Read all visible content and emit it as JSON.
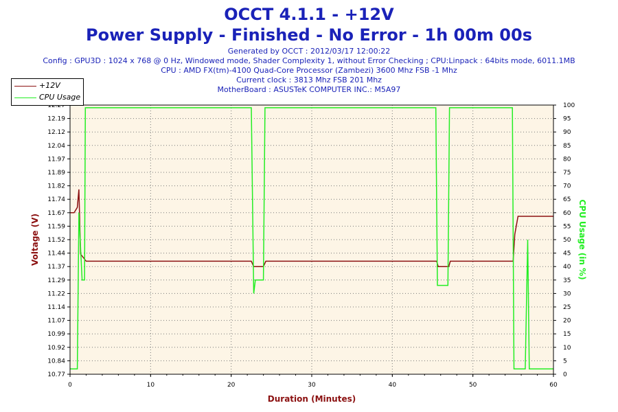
{
  "title_line1": "OCCT 4.1.1 - +12V",
  "title_line2": "Power Supply - Finished - No Error - 1h 00m 00s",
  "info_lines": [
    "Generated by OCCT : 2012/03/17 12:00:22",
    "Config : GPU3D : 1024 x 768 @ 0 Hz, Windowed mode, Shader Complexity 1, without Error Checking ; CPU:Linpack : 64bits mode, 6011.1MB",
    "CPU : AMD FX(tm)-4100 Quad-Core Processor (Zambezi) 3600 Mhz FSB -1 Mhz",
    "Current clock : 3813 Mhz FSB 201 Mhz",
    "MotherBoard : ASUSTeK COMPUTER INC.: M5A97"
  ],
  "colors": {
    "voltage": "#8b1010",
    "cpu": "#22ee22",
    "plot_bg": "#fdf5e6",
    "title": "#1a22b8"
  },
  "chart_data": {
    "type": "line",
    "title": "OCCT 4.1.1 - +12V",
    "subtitle": "Power Supply - Finished - No Error - 1h 00m 00s",
    "xlabel": "Duration (Minutes)",
    "ylabel": "Voltage (V)",
    "y2label": "CPU Usage (in %)",
    "xlim": [
      0,
      60
    ],
    "ylim": [
      10.77,
      12.27
    ],
    "y2lim": [
      0,
      100
    ],
    "x_ticks": [
      "0",
      "10",
      "20",
      "30",
      "40",
      "50",
      "60"
    ],
    "y_ticks": [
      "10.77",
      "10.84",
      "10.92",
      "10.99",
      "11.07",
      "11.14",
      "11.22",
      "11.29",
      "11.37",
      "11.44",
      "11.52",
      "11.59",
      "11.67",
      "11.74",
      "11.82",
      "11.89",
      "11.97",
      "12.04",
      "12.12",
      "12.19",
      "12.27"
    ],
    "y2_ticks": [
      "0",
      "5",
      "10",
      "15",
      "20",
      "25",
      "30",
      "35",
      "40",
      "45",
      "50",
      "55",
      "60",
      "65",
      "70",
      "75",
      "80",
      "85",
      "90",
      "95",
      "100"
    ],
    "grid": true,
    "legend": "top-left",
    "series": [
      {
        "name": "+12V",
        "axis": "left",
        "points": [
          [
            0,
            11.67
          ],
          [
            0.5,
            11.67
          ],
          [
            0.9,
            11.7
          ],
          [
            1.1,
            11.8
          ],
          [
            1.3,
            11.44
          ],
          [
            2,
            11.4
          ],
          [
            5,
            11.4
          ],
          [
            10,
            11.4
          ],
          [
            15,
            11.4
          ],
          [
            20,
            11.4
          ],
          [
            22.5,
            11.4
          ],
          [
            22.8,
            11.37
          ],
          [
            24,
            11.37
          ],
          [
            24.3,
            11.4
          ],
          [
            30,
            11.4
          ],
          [
            35,
            11.4
          ],
          [
            40,
            11.4
          ],
          [
            45.5,
            11.4
          ],
          [
            45.7,
            11.37
          ],
          [
            47,
            11.37
          ],
          [
            47.2,
            11.4
          ],
          [
            50,
            11.4
          ],
          [
            55,
            11.4
          ],
          [
            55.2,
            11.55
          ],
          [
            55.6,
            11.65
          ],
          [
            56,
            11.65
          ],
          [
            60,
            11.65
          ]
        ]
      },
      {
        "name": "CPU Usage",
        "axis": "right",
        "points": [
          [
            0,
            2
          ],
          [
            0.9,
            2
          ],
          [
            1.1,
            60
          ],
          [
            1.5,
            35
          ],
          [
            1.8,
            35
          ],
          [
            1.9,
            99
          ],
          [
            5,
            99
          ],
          [
            10,
            99
          ],
          [
            15,
            99
          ],
          [
            20,
            99
          ],
          [
            22.5,
            99
          ],
          [
            22.8,
            30
          ],
          [
            23,
            35
          ],
          [
            24,
            35
          ],
          [
            24.2,
            99
          ],
          [
            30,
            99
          ],
          [
            35,
            99
          ],
          [
            40,
            99
          ],
          [
            45.4,
            99
          ],
          [
            45.6,
            33
          ],
          [
            46.9,
            33
          ],
          [
            47.1,
            99
          ],
          [
            50,
            99
          ],
          [
            54.9,
            99
          ],
          [
            55.1,
            2
          ],
          [
            56.5,
            2
          ],
          [
            56.8,
            50
          ],
          [
            57,
            2
          ],
          [
            60,
            2
          ]
        ]
      }
    ]
  }
}
